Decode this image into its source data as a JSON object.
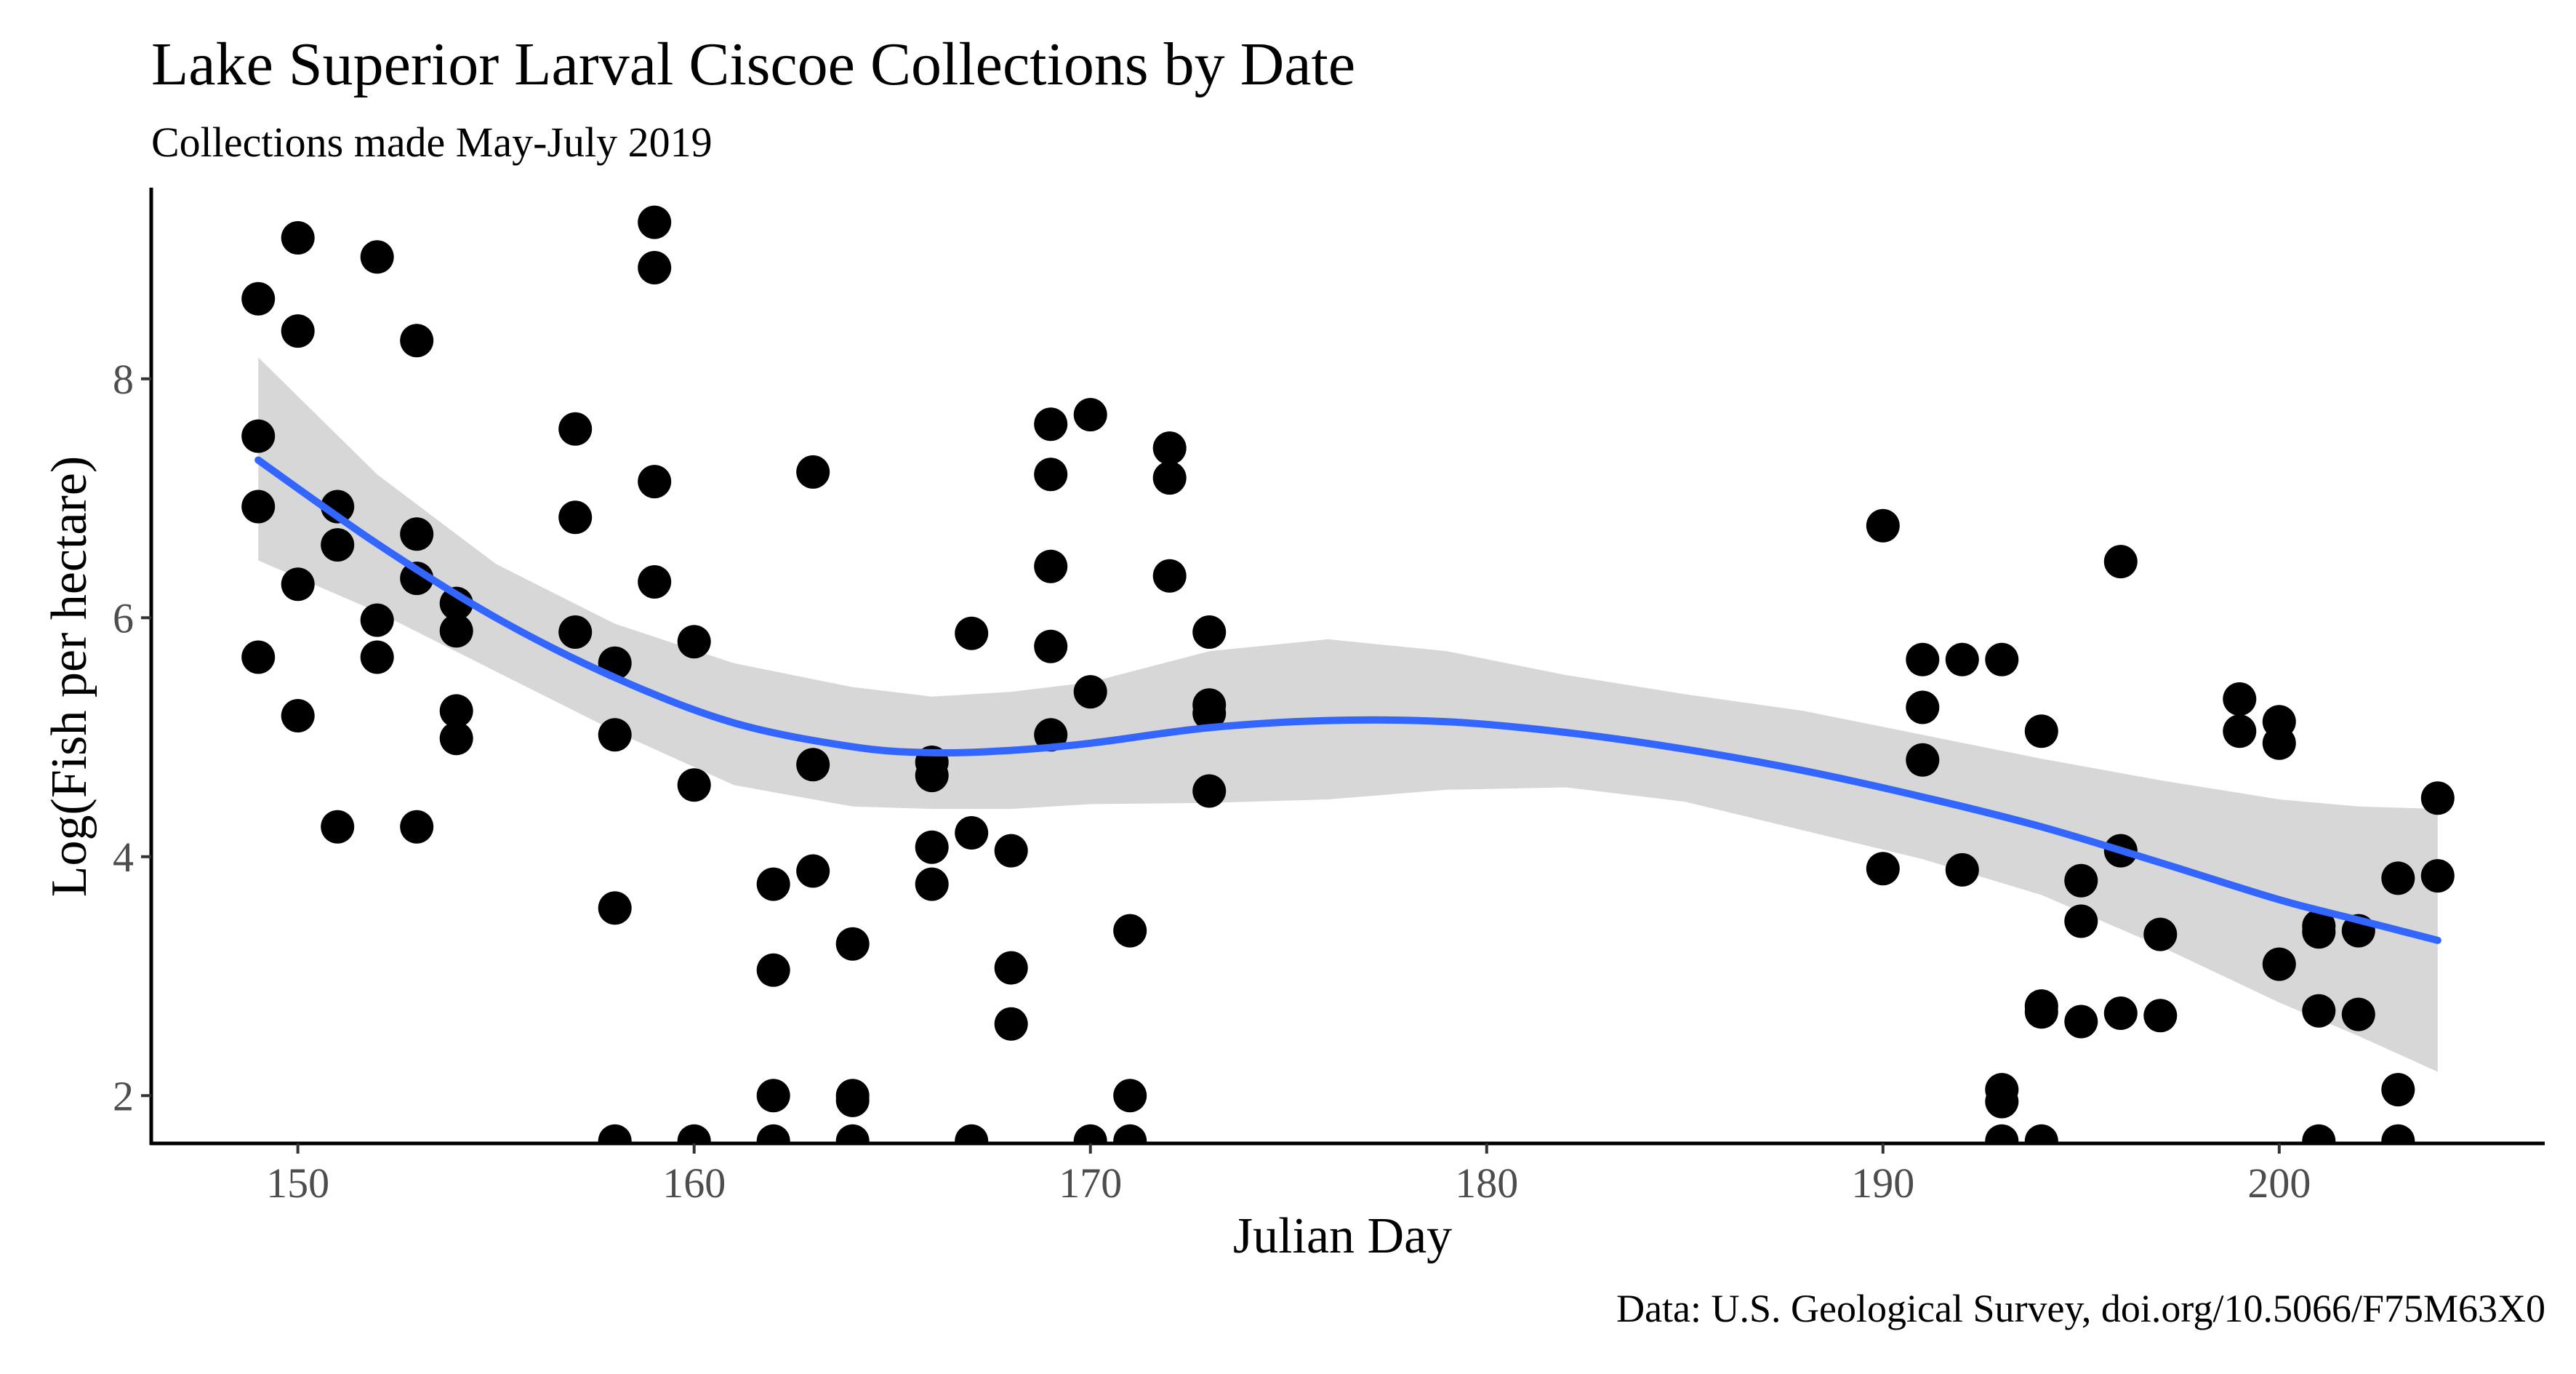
{
  "chart_data": {
    "type": "scatter",
    "title": "Lake Superior Larval Ciscoe Collections by Date",
    "subtitle": "Collections made May-July 2019",
    "xlabel": "Julian Day",
    "ylabel": "Log(Fish per hectare)",
    "caption": "Data: U.S. Geological Survey, doi.org/10.5066/F75M63X0",
    "xlim": [
      146.3,
      206.7
    ],
    "ylim": [
      1.6,
      9.6
    ],
    "x_ticks": [
      150,
      160,
      170,
      180,
      190,
      200
    ],
    "y_ticks": [
      2,
      4,
      6,
      8
    ],
    "grid": false,
    "colors": {
      "points": "#000000",
      "smooth_line": "#3366FF",
      "confidence_band": "#d3d3d3"
    },
    "points": [
      [
        149,
        8.67
      ],
      [
        149,
        7.52
      ],
      [
        149,
        6.93
      ],
      [
        149,
        5.67
      ],
      [
        150,
        9.18
      ],
      [
        150,
        8.4
      ],
      [
        150,
        6.28
      ],
      [
        150,
        5.18
      ],
      [
        151,
        6.93
      ],
      [
        151,
        6.61
      ],
      [
        151,
        4.25
      ],
      [
        152,
        9.02
      ],
      [
        152,
        5.98
      ],
      [
        152,
        5.67
      ],
      [
        153,
        8.32
      ],
      [
        153,
        6.7
      ],
      [
        153,
        6.33
      ],
      [
        153,
        4.25
      ],
      [
        154,
        6.12
      ],
      [
        154,
        5.89
      ],
      [
        154,
        5.22
      ],
      [
        154,
        4.99
      ],
      [
        157,
        7.58
      ],
      [
        157,
        6.84
      ],
      [
        157,
        5.88
      ],
      [
        158,
        5.62
      ],
      [
        158,
        5.02
      ],
      [
        158,
        3.57
      ],
      [
        158,
        1.62
      ],
      [
        159,
        9.31
      ],
      [
        159,
        8.93
      ],
      [
        159,
        7.14
      ],
      [
        159,
        6.3
      ],
      [
        160,
        5.8
      ],
      [
        160,
        4.6
      ],
      [
        160,
        1.62
      ],
      [
        162,
        3.77
      ],
      [
        162,
        3.05
      ],
      [
        162,
        2.0
      ],
      [
        162,
        1.62
      ],
      [
        163,
        7.22
      ],
      [
        163,
        4.77
      ],
      [
        163,
        3.88
      ],
      [
        164,
        3.27
      ],
      [
        164,
        2.0
      ],
      [
        164,
        1.96
      ],
      [
        164,
        1.62
      ],
      [
        166,
        4.79
      ],
      [
        166,
        4.68
      ],
      [
        166,
        4.08
      ],
      [
        166,
        3.77
      ],
      [
        167,
        5.87
      ],
      [
        167,
        4.2
      ],
      [
        167,
        1.62
      ],
      [
        168,
        4.05
      ],
      [
        168,
        3.07
      ],
      [
        168,
        2.6
      ],
      [
        169,
        7.62
      ],
      [
        169,
        7.2
      ],
      [
        169,
        6.43
      ],
      [
        169,
        5.76
      ],
      [
        169,
        5.02
      ],
      [
        170,
        7.7
      ],
      [
        170,
        5.38
      ],
      [
        170,
        1.62
      ],
      [
        171,
        3.38
      ],
      [
        171,
        2.0
      ],
      [
        171,
        1.62
      ],
      [
        172,
        7.42
      ],
      [
        172,
        7.17
      ],
      [
        172,
        6.35
      ],
      [
        173,
        5.88
      ],
      [
        173,
        5.27
      ],
      [
        173,
        5.2
      ],
      [
        173,
        4.55
      ],
      [
        190,
        6.77
      ],
      [
        190,
        3.9
      ],
      [
        191,
        5.65
      ],
      [
        191,
        5.25
      ],
      [
        191,
        4.81
      ],
      [
        192,
        5.65
      ],
      [
        192,
        3.89
      ],
      [
        193,
        5.65
      ],
      [
        193,
        2.05
      ],
      [
        193,
        1.95
      ],
      [
        193,
        1.62
      ],
      [
        194,
        5.05
      ],
      [
        194,
        2.75
      ],
      [
        194,
        2.7
      ],
      [
        194,
        1.62
      ],
      [
        195,
        3.8
      ],
      [
        195,
        3.46
      ],
      [
        195,
        2.62
      ],
      [
        196,
        6.47
      ],
      [
        196,
        4.05
      ],
      [
        196,
        2.69
      ],
      [
        197,
        3.35
      ],
      [
        197,
        2.67
      ],
      [
        199,
        5.32
      ],
      [
        199,
        5.05
      ],
      [
        200,
        5.13
      ],
      [
        200,
        4.95
      ],
      [
        200,
        3.1
      ],
      [
        201,
        3.42
      ],
      [
        201,
        3.37
      ],
      [
        201,
        2.71
      ],
      [
        201,
        1.62
      ],
      [
        202,
        3.38
      ],
      [
        202,
        2.68
      ],
      [
        203,
        3.82
      ],
      [
        203,
        2.05
      ],
      [
        203,
        1.62
      ],
      [
        204,
        4.49
      ],
      [
        204,
        3.84
      ]
    ],
    "smooth": {
      "method": "loess",
      "x": [
        149,
        152,
        155,
        158,
        161,
        164,
        166,
        168,
        170,
        173,
        176,
        179,
        182,
        185,
        188,
        191,
        194,
        197,
        200,
        202,
        204
      ],
      "y": [
        7.32,
        6.62,
        6.0,
        5.5,
        5.12,
        4.92,
        4.87,
        4.89,
        4.95,
        5.08,
        5.14,
        5.13,
        5.04,
        4.9,
        4.72,
        4.5,
        4.25,
        3.95,
        3.64,
        3.47,
        3.3
      ],
      "lower": [
        6.48,
        6.05,
        5.55,
        5.05,
        4.6,
        4.42,
        4.4,
        4.4,
        4.44,
        4.45,
        4.48,
        4.56,
        4.58,
        4.46,
        4.22,
        3.98,
        3.68,
        3.25,
        2.78,
        2.5,
        2.2
      ],
      "upper": [
        8.18,
        7.2,
        6.45,
        5.95,
        5.62,
        5.42,
        5.34,
        5.38,
        5.46,
        5.72,
        5.82,
        5.72,
        5.52,
        5.36,
        5.22,
        5.02,
        4.82,
        4.64,
        4.48,
        4.42,
        4.4
      ]
    }
  }
}
